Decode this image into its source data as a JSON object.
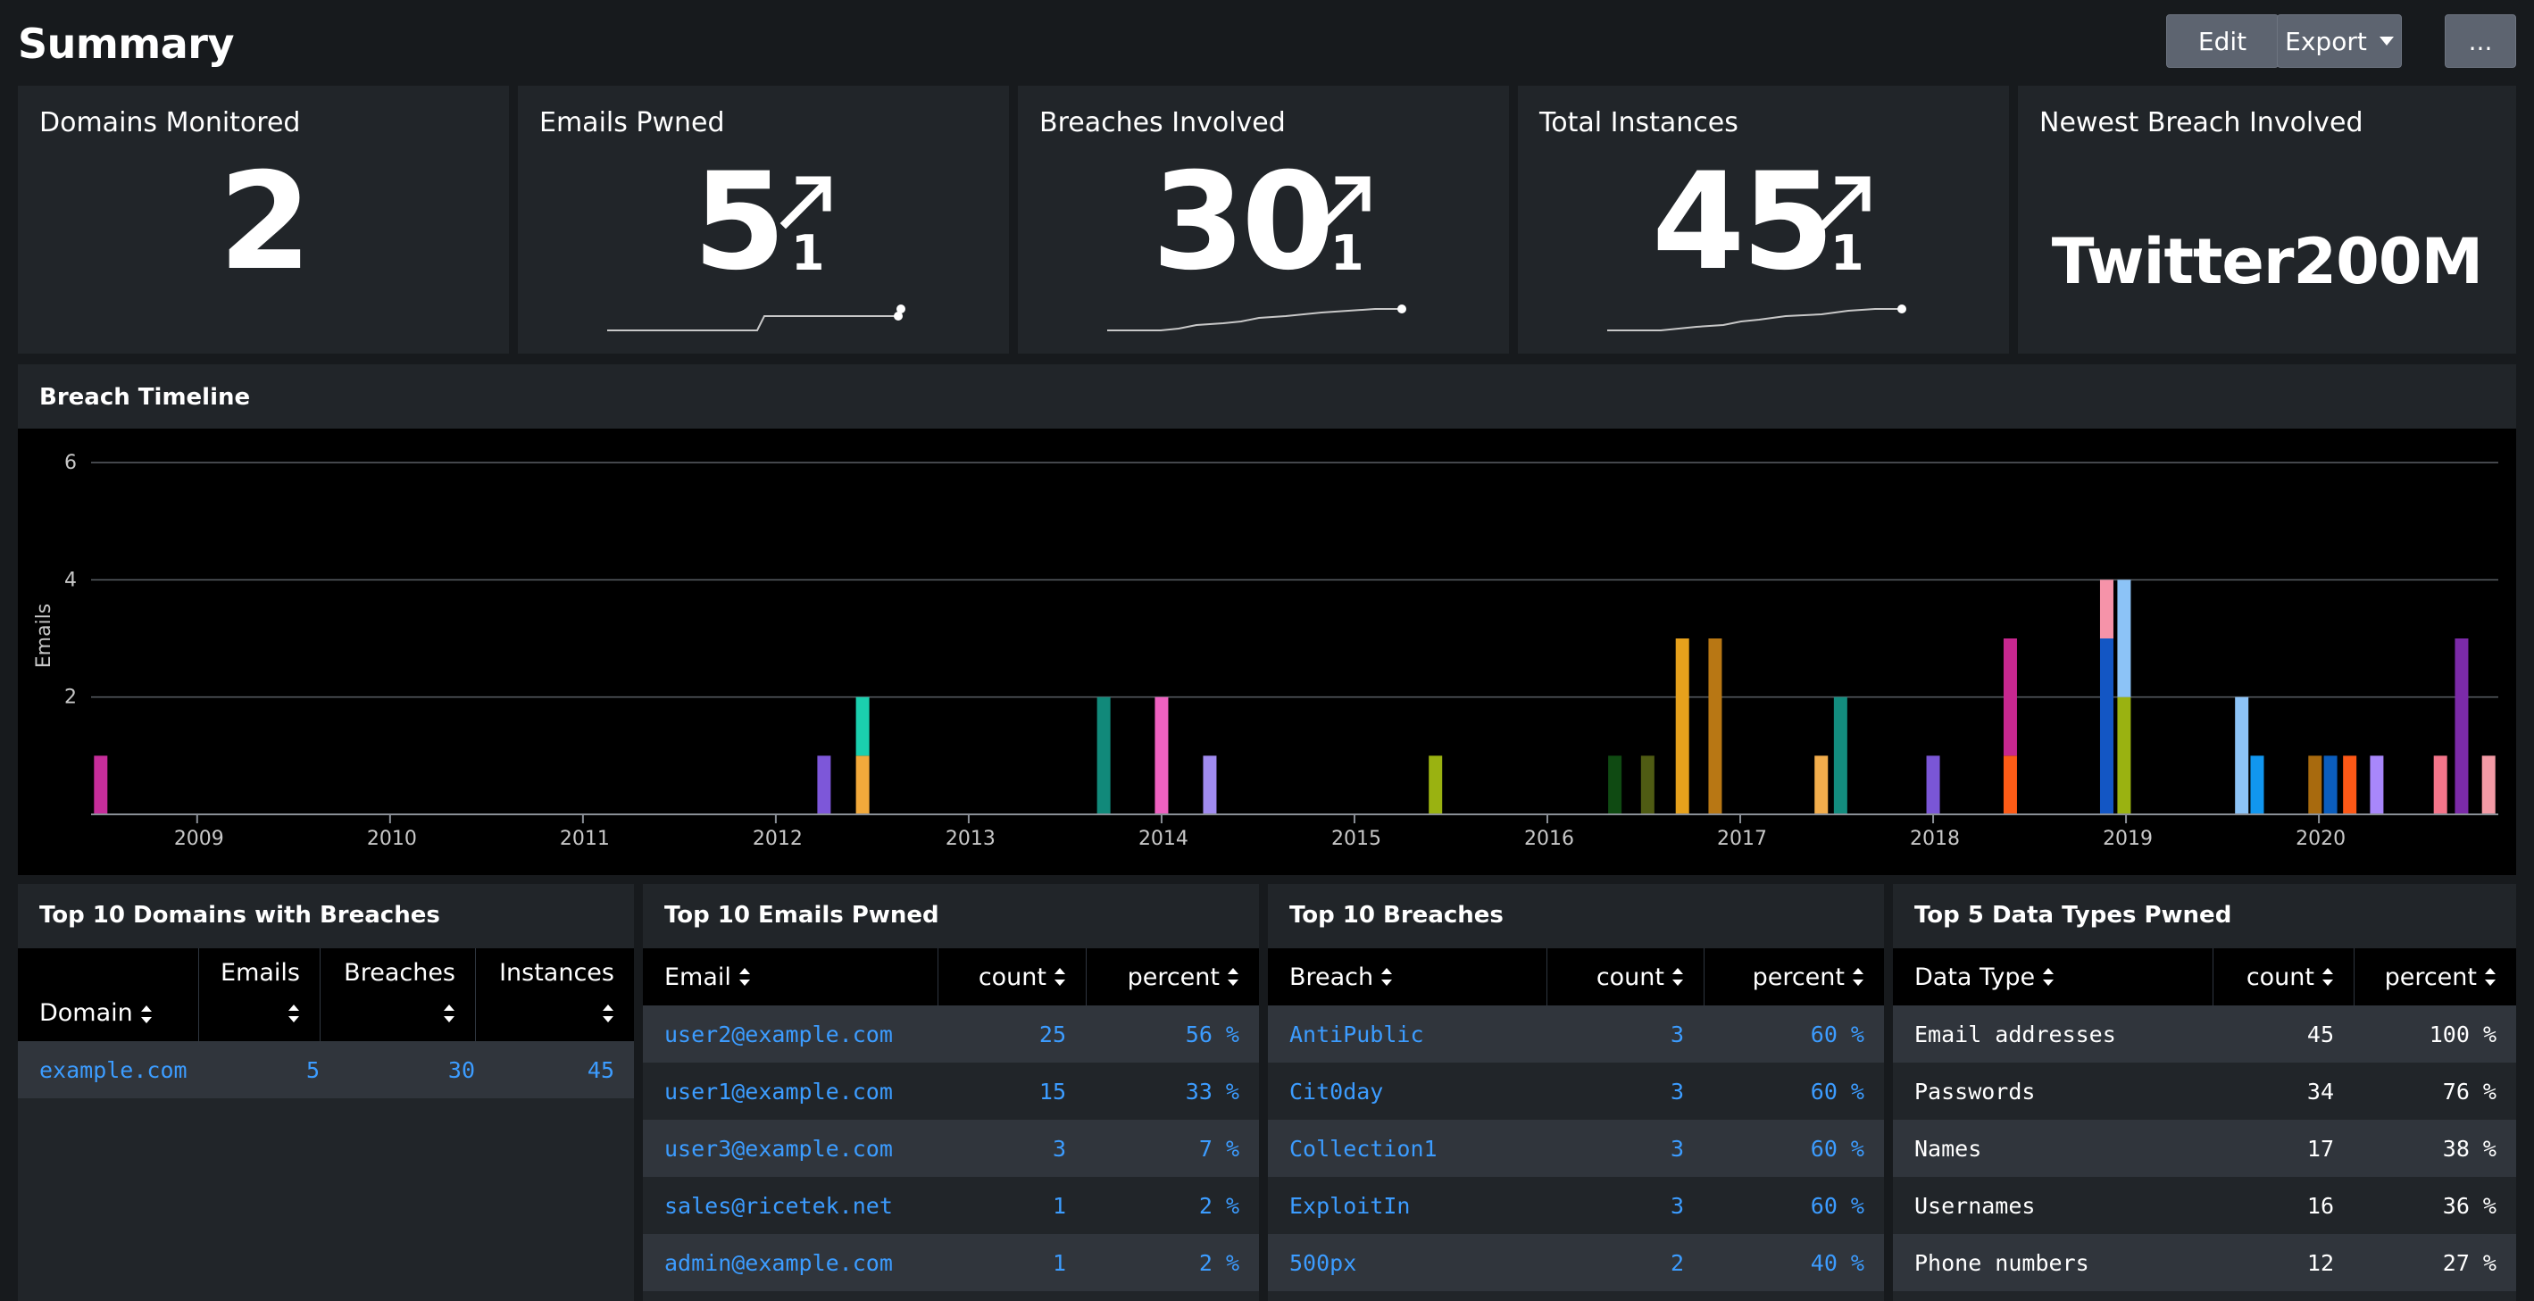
{
  "header": {
    "title": "Summary",
    "edit_label": "Edit",
    "export_label": "Export",
    "more_label": "..."
  },
  "kpis": [
    {
      "title": "Domains Monitored",
      "value": "2"
    },
    {
      "title": "Emails Pwned",
      "value": "5",
      "delta": "1",
      "trend": "up"
    },
    {
      "title": "Breaches Involved",
      "value": "30",
      "delta": "1",
      "trend": "up"
    },
    {
      "title": "Total Instances",
      "value": "45",
      "delta": "1",
      "trend": "up"
    },
    {
      "title": "Newest Breach Involved",
      "value": "Twitter200M"
    }
  ],
  "timeline": {
    "title": "Breach Timeline"
  },
  "chart_data": {
    "type": "bar",
    "stacked": true,
    "ylabel": "Emails",
    "ylim": [
      0,
      6
    ],
    "yticks": [
      2,
      4,
      6
    ],
    "xlim": [
      2008.45,
      2020.93
    ],
    "xticks": [
      "2009",
      "2010",
      "2011",
      "2012",
      "2013",
      "2014",
      "2015",
      "2016",
      "2017",
      "2018",
      "2019",
      "2020"
    ],
    "grid": true,
    "stacks": [
      {
        "x": 2008.5,
        "segments": [
          {
            "value": 1,
            "color": "#c62d9a"
          }
        ]
      },
      {
        "x": 2012.25,
        "segments": [
          {
            "value": 1,
            "color": "#7d57d9"
          }
        ]
      },
      {
        "x": 2012.45,
        "segments": [
          {
            "value": 1,
            "color": "#f2a93b"
          },
          {
            "value": 1,
            "color": "#1bcfae"
          }
        ]
      },
      {
        "x": 2013.7,
        "segments": [
          {
            "value": 2,
            "color": "#11897a"
          }
        ]
      },
      {
        "x": 2014.0,
        "segments": [
          {
            "value": 2,
            "color": "#ee61c0"
          }
        ]
      },
      {
        "x": 2014.25,
        "segments": [
          {
            "value": 1,
            "color": "#a08bef"
          }
        ]
      },
      {
        "x": 2015.42,
        "segments": [
          {
            "value": 1,
            "color": "#9ab211"
          }
        ]
      },
      {
        "x": 2016.35,
        "segments": [
          {
            "value": 1,
            "color": "#0f4a12"
          }
        ]
      },
      {
        "x": 2016.52,
        "segments": [
          {
            "value": 1,
            "color": "#4f5b13"
          }
        ]
      },
      {
        "x": 2016.7,
        "segments": [
          {
            "value": 3,
            "color": "#e6a11c"
          }
        ]
      },
      {
        "x": 2016.87,
        "segments": [
          {
            "value": 3,
            "color": "#b87714"
          }
        ]
      },
      {
        "x": 2017.42,
        "segments": [
          {
            "value": 1,
            "color": "#f2ad4c"
          }
        ]
      },
      {
        "x": 2017.52,
        "segments": [
          {
            "value": 2,
            "color": "#138c7e"
          }
        ]
      },
      {
        "x": 2018.0,
        "segments": [
          {
            "value": 1,
            "color": "#7a56d6"
          }
        ]
      },
      {
        "x": 2018.4,
        "segments": [
          {
            "value": 1,
            "color": "#fc5b16"
          },
          {
            "value": 2,
            "color": "#c7278f"
          }
        ]
      },
      {
        "x": 2018.9,
        "segments": [
          {
            "value": 3,
            "color": "#1356c4"
          },
          {
            "value": 1,
            "color": "#f693a9"
          }
        ]
      },
      {
        "x": 2018.99,
        "segments": [
          {
            "value": 2,
            "color": "#9ab211"
          },
          {
            "value": 2,
            "color": "#8cc3f7"
          }
        ]
      },
      {
        "x": 2019.6,
        "segments": [
          {
            "value": 2,
            "color": "#8cc3f7"
          }
        ]
      },
      {
        "x": 2019.68,
        "segments": [
          {
            "value": 1,
            "color": "#1196ef"
          }
        ]
      },
      {
        "x": 2019.98,
        "segments": [
          {
            "value": 1,
            "color": "#a86a0e"
          }
        ]
      },
      {
        "x": 2020.06,
        "segments": [
          {
            "value": 1,
            "color": "#0b5dbd"
          }
        ]
      },
      {
        "x": 2020.16,
        "segments": [
          {
            "value": 1,
            "color": "#fd5816"
          }
        ]
      },
      {
        "x": 2020.3,
        "segments": [
          {
            "value": 1,
            "color": "#a887fb"
          }
        ]
      },
      {
        "x": 2020.63,
        "segments": [
          {
            "value": 1,
            "color": "#f4758a"
          }
        ]
      },
      {
        "x": 2020.74,
        "segments": [
          {
            "value": 3,
            "color": "#7b2aa8"
          }
        ]
      },
      {
        "x": 2020.88,
        "segments": [
          {
            "value": 1,
            "color": "#f39aa5"
          }
        ]
      }
    ]
  },
  "tables": {
    "domains": {
      "title": "Top 10 Domains with Breaches",
      "columns": [
        "Domain",
        "Emails",
        "Breaches",
        "Instances"
      ],
      "rows": [
        [
          "example.com",
          "5",
          "30",
          "45"
        ]
      ]
    },
    "emails": {
      "title": "Top 10 Emails Pwned",
      "columns": [
        "Email",
        "count",
        "percent"
      ],
      "rows": [
        [
          "user2@example.com",
          "25",
          "56 %"
        ],
        [
          "user1@example.com",
          "15",
          "33 %"
        ],
        [
          "user3@example.com",
          "3",
          "7 %"
        ],
        [
          "sales@ricetek.net",
          "1",
          "2 %"
        ],
        [
          "admin@example.com",
          "1",
          "2 %"
        ]
      ]
    },
    "breaches": {
      "title": "Top 10 Breaches",
      "columns": [
        "Breach",
        "count",
        "percent"
      ],
      "rows": [
        [
          "AntiPublic",
          "3",
          "60 %"
        ],
        [
          "Cit0day",
          "3",
          "60 %"
        ],
        [
          "Collection1",
          "3",
          "60 %"
        ],
        [
          "ExploitIn",
          "3",
          "60 %"
        ],
        [
          "500px",
          "2",
          "40 %"
        ]
      ]
    },
    "datatypes": {
      "title": "Top 5 Data Types Pwned",
      "columns": [
        "Data Type",
        "count",
        "percent"
      ],
      "rows": [
        [
          "Email addresses",
          "45",
          "100 %"
        ],
        [
          "Passwords",
          "34",
          "76 %"
        ],
        [
          "Names",
          "17",
          "38 %"
        ],
        [
          "Usernames",
          "16",
          "36 %"
        ],
        [
          "Phone numbers",
          "12",
          "27 %"
        ]
      ]
    }
  },
  "colors": {
    "background": "#171a1d",
    "panel": "#212529",
    "row_alt": "#30353c",
    "link": "#3c9cff",
    "button": "#5d6470"
  }
}
